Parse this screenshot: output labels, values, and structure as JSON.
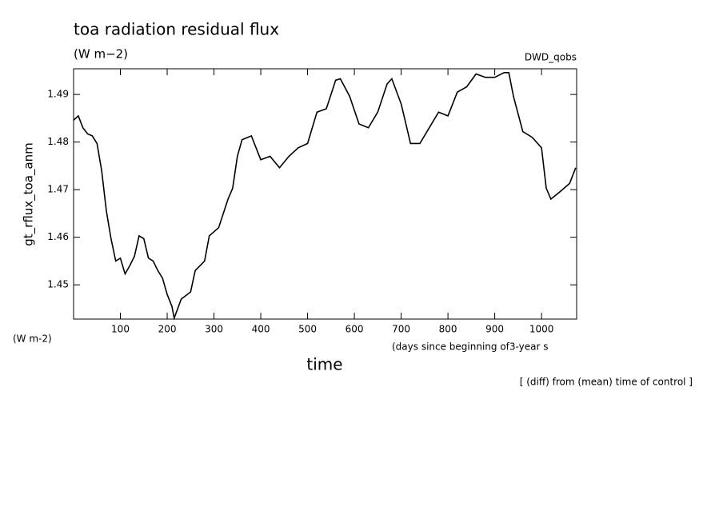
{
  "chart_data": {
    "type": "line",
    "title": "toa radiation residual flux",
    "subtitle": "(W m−2)",
    "source": "DWD_qobs",
    "y_label": "gt_rflux_toa_anm",
    "y_units": "(W m-2)",
    "x_units": "(days since beginning of3-year s",
    "x_label": "time",
    "footnote": "[ (diff) from (mean) time of control ]",
    "xlim": [
      0,
      1075
    ],
    "ylim": [
      1.4428,
      1.4954
    ],
    "xticks": [
      100,
      200,
      300,
      400,
      500,
      600,
      700,
      800,
      900,
      1000
    ],
    "yticks": [
      1.45,
      1.46,
      1.47,
      1.48,
      1.49
    ],
    "x": [
      0,
      10,
      20,
      30,
      40,
      50,
      60,
      70,
      80,
      90,
      100,
      110,
      120,
      130,
      140,
      150,
      160,
      170,
      180,
      190,
      200,
      210,
      215,
      230,
      250,
      260,
      280,
      290,
      310,
      330,
      340,
      350,
      360,
      380,
      400,
      420,
      440,
      460,
      480,
      500,
      520,
      540,
      560,
      570,
      590,
      610,
      630,
      650,
      670,
      680,
      700,
      720,
      740,
      760,
      780,
      800,
      820,
      840,
      860,
      880,
      900,
      920,
      930,
      940,
      960,
      980,
      1000,
      1010,
      1020,
      1040,
      1060,
      1073
    ],
    "series": [
      {
        "color": "#000000",
        "values": [
          1.4846,
          1.4855,
          1.483,
          1.4817,
          1.4813,
          1.4797,
          1.474,
          1.4655,
          1.4597,
          1.455,
          1.4556,
          1.4523,
          1.454,
          1.456,
          1.4603,
          1.4597,
          1.4556,
          1.455,
          1.453,
          1.4514,
          1.448,
          1.4455,
          1.443,
          1.447,
          1.4485,
          1.453,
          1.455,
          1.4603,
          1.462,
          1.468,
          1.4703,
          1.477,
          1.4805,
          1.4813,
          1.4763,
          1.477,
          1.4746,
          1.477,
          1.4788,
          1.4797,
          1.4863,
          1.487,
          1.493,
          1.4933,
          1.4896,
          1.4838,
          1.483,
          1.4863,
          1.4922,
          1.4933,
          1.488,
          1.4797,
          1.4797,
          1.483,
          1.4863,
          1.4855,
          1.4905,
          1.4916,
          1.4943,
          1.4936,
          1.4936,
          1.4946,
          1.4946,
          1.4896,
          1.4822,
          1.481,
          1.4788,
          1.4703,
          1.468,
          1.4696,
          1.4713,
          1.4746
        ]
      }
    ]
  }
}
